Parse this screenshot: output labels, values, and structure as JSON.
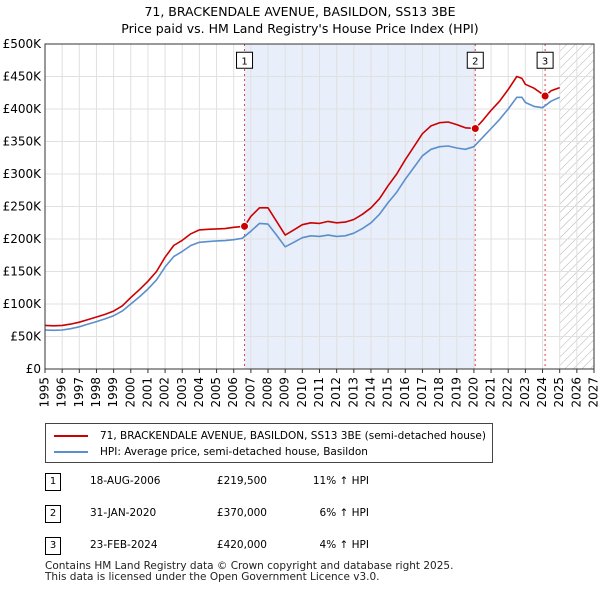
{
  "chart_data": {
    "type": "line",
    "title": "71, BRACKENDALE AVENUE, BASILDON, SS13 3BE",
    "subtitle": "Price paid vs. HM Land Registry's House Price Index (HPI)",
    "xlim": [
      1995,
      2027
    ],
    "ylim": [
      0,
      500000
    ],
    "x_ticks": [
      1995,
      1996,
      1997,
      1998,
      1999,
      2000,
      2001,
      2002,
      2003,
      2004,
      2005,
      2006,
      2007,
      2008,
      2009,
      2010,
      2011,
      2012,
      2013,
      2014,
      2015,
      2016,
      2017,
      2018,
      2019,
      2020,
      2021,
      2022,
      2023,
      2024,
      2025,
      2026,
      2027
    ],
    "y_ticks": [
      {
        "value": 0,
        "label": "£0"
      },
      {
        "value": 50000,
        "label": "£50K"
      },
      {
        "value": 100000,
        "label": "£100K"
      },
      {
        "value": 150000,
        "label": "£150K"
      },
      {
        "value": 200000,
        "label": "£200K"
      },
      {
        "value": 250000,
        "label": "£250K"
      },
      {
        "value": 300000,
        "label": "£300K"
      },
      {
        "value": 350000,
        "label": "£350K"
      },
      {
        "value": 400000,
        "label": "£400K"
      },
      {
        "value": 450000,
        "label": "£450K"
      },
      {
        "value": 500000,
        "label": "£500K"
      }
    ],
    "shaded_between": [
      2006.63,
      2020.08
    ],
    "future_hatch_from": 2025.0,
    "series": [
      {
        "name": "71, BRACKENDALE AVENUE, BASILDON, SS13 3BE (semi-detached house)",
        "color": "#cc0000",
        "x": [
          1995,
          1995.5,
          1996,
          1996.5,
          1997,
          1997.5,
          1998,
          1998.5,
          1999,
          1999.5,
          2000,
          2000.5,
          2001,
          2001.5,
          2002,
          2002.5,
          2003,
          2003.5,
          2004,
          2004.5,
          2005,
          2005.5,
          2006,
          2006.63,
          2007,
          2007.5,
          2008,
          2008.5,
          2009,
          2009.5,
          2010,
          2010.5,
          2011,
          2011.5,
          2012,
          2012.5,
          2013,
          2013.5,
          2014,
          2014.5,
          2015,
          2015.5,
          2016,
          2016.5,
          2017,
          2017.5,
          2018,
          2018.5,
          2019,
          2019.5,
          2020.08,
          2020.5,
          2021,
          2021.5,
          2022,
          2022.5,
          2022.8,
          2023,
          2023.5,
          2024.15,
          2024.5,
          2025
        ],
        "values": [
          67000,
          66500,
          67000,
          69000,
          72000,
          76000,
          80000,
          84000,
          89000,
          97000,
          110000,
          122000,
          135000,
          150000,
          172000,
          190000,
          198000,
          208000,
          214000,
          215000,
          215500,
          216000,
          218000,
          219500,
          235000,
          248000,
          248000,
          227000,
          206000,
          214000,
          222000,
          225000,
          224000,
          227000,
          225000,
          226000,
          230000,
          238000,
          248000,
          262000,
          282000,
          300000,
          322000,
          342000,
          362000,
          374000,
          379000,
          380000,
          376000,
          371000,
          370000,
          382000,
          398000,
          412000,
          430000,
          450000,
          447000,
          438000,
          432000,
          420000,
          428000,
          433000
        ]
      },
      {
        "name": "HPI: Average price, semi-detached house, Basildon",
        "color": "#5b8fcc",
        "x": [
          1995,
          1995.5,
          1996,
          1996.5,
          1997,
          1997.5,
          1998,
          1998.5,
          1999,
          1999.5,
          2000,
          2000.5,
          2001,
          2001.5,
          2002,
          2002.5,
          2003,
          2003.5,
          2004,
          2004.5,
          2005,
          2005.5,
          2006,
          2006.5,
          2007,
          2007.5,
          2008,
          2008.5,
          2009,
          2009.5,
          2010,
          2010.5,
          2011,
          2011.5,
          2012,
          2012.5,
          2013,
          2013.5,
          2014,
          2014.5,
          2015,
          2015.5,
          2016,
          2016.5,
          2017,
          2017.5,
          2018,
          2018.5,
          2019,
          2019.5,
          2020,
          2020.5,
          2021,
          2021.5,
          2022,
          2022.5,
          2022.8,
          2023,
          2023.5,
          2024,
          2024.5,
          2025
        ],
        "values": [
          60000,
          59500,
          60000,
          62000,
          65000,
          69000,
          73000,
          77000,
          82000,
          89000,
          100000,
          111000,
          123000,
          137000,
          157000,
          173000,
          181000,
          190000,
          195000,
          196000,
          197000,
          197500,
          199000,
          201000,
          212000,
          224000,
          223000,
          206000,
          188000,
          195000,
          202000,
          205000,
          204000,
          206000,
          204000,
          205000,
          209000,
          216000,
          225000,
          238000,
          256000,
          272000,
          292000,
          310000,
          328000,
          338000,
          342000,
          343000,
          340000,
          338000,
          342000,
          356000,
          370000,
          384000,
          400000,
          418000,
          418000,
          410000,
          404000,
          402000,
          412000,
          418000
        ]
      }
    ],
    "markers": [
      {
        "label": "1",
        "x": 2006.63,
        "y": 219500,
        "box_y": 475000
      },
      {
        "label": "2",
        "x": 2020.08,
        "y": 370000,
        "box_y": 475000
      },
      {
        "label": "3",
        "x": 2024.15,
        "y": 420000,
        "box_y": 475000
      }
    ]
  },
  "legend": {
    "property_label": "71, BRACKENDALE AVENUE, BASILDON, SS13 3BE (semi-detached house)",
    "hpi_label": "HPI: Average price, semi-detached house, Basildon"
  },
  "transactions": [
    {
      "num": "1",
      "date": "18-AUG-2006",
      "price": "£219,500",
      "hpi": "11% ↑ HPI"
    },
    {
      "num": "2",
      "date": "31-JAN-2020",
      "price": "£370,000",
      "hpi": "6% ↑ HPI"
    },
    {
      "num": "3",
      "date": "23-FEB-2024",
      "price": "£420,000",
      "hpi": "4% ↑ HPI"
    }
  ],
  "footer": {
    "line1": "Contains HM Land Registry data © Crown copyright and database right 2025.",
    "line2": "This data is licensed under the Open Government Licence v3.0."
  }
}
